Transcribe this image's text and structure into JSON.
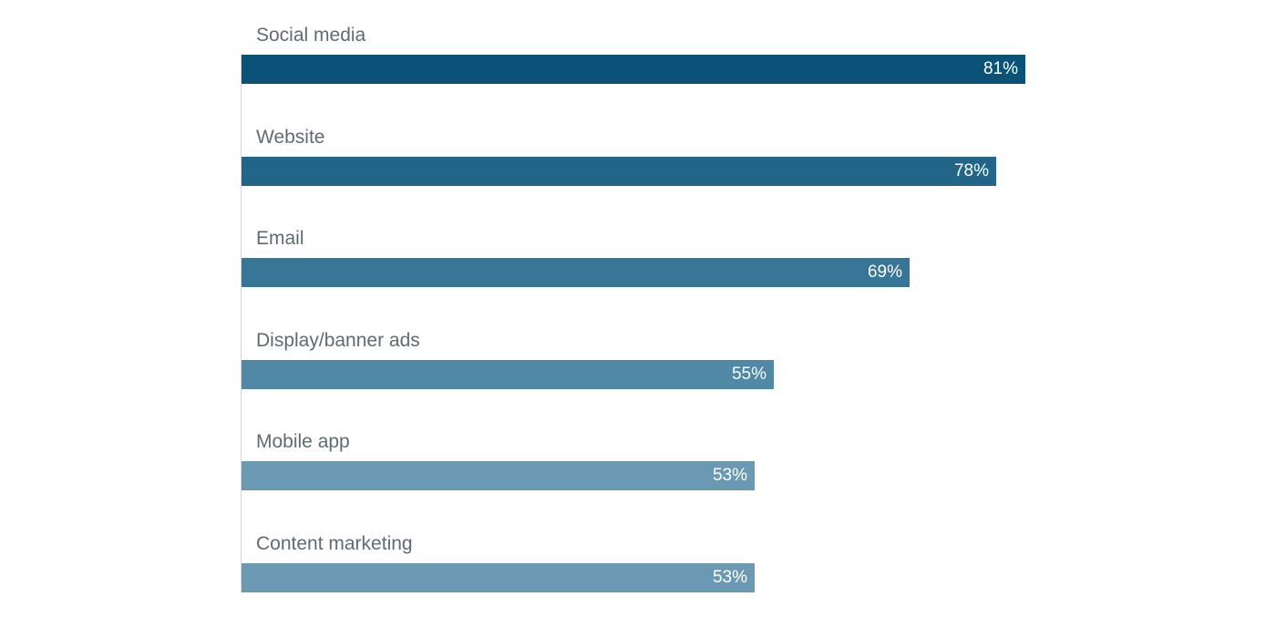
{
  "chart_data": {
    "type": "bar",
    "orientation": "horizontal",
    "categories": [
      "Social media",
      "Website",
      "Email",
      "Display/banner ads",
      "Mobile app",
      "Content marketing"
    ],
    "values": [
      81,
      78,
      69,
      55,
      53,
      53
    ],
    "value_labels": [
      "81%",
      "78%",
      "69%",
      "55%",
      "53%",
      "53%"
    ],
    "colors": [
      "#0b5279",
      "#216688",
      "#377696",
      "#5088a6",
      "#6b99b3",
      "#6b99b3"
    ],
    "title": "",
    "xlabel": "",
    "ylabel": "",
    "xlim": [
      0,
      100
    ],
    "grid": false,
    "legend": "none"
  }
}
